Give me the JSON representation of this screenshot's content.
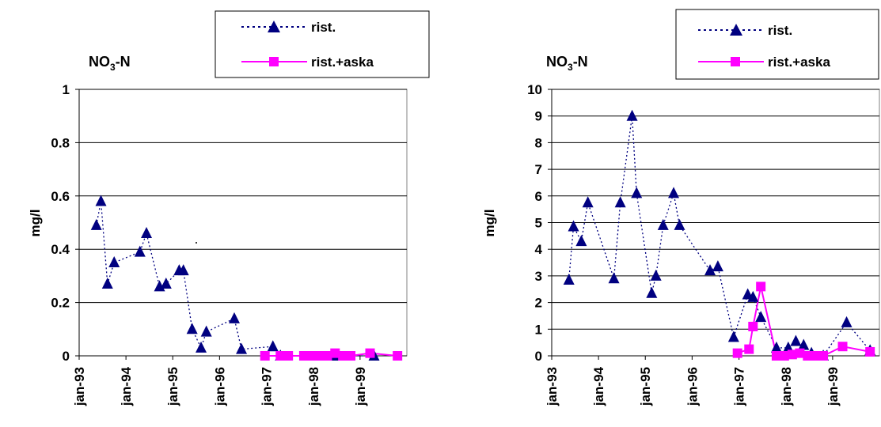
{
  "chart_data": [
    {
      "type": "line",
      "title_main": "NO",
      "title_sub": "3",
      "title_rest": "-N",
      "ylabel": "mg/l",
      "ylim": [
        0,
        1
      ],
      "yticks": [
        "0",
        "0.2",
        "0.4",
        "0.6",
        "0.8",
        "1"
      ],
      "yticks_values": [
        0,
        0.2,
        0.4,
        0.6,
        0.8,
        1
      ],
      "xlim": [
        "1993-01-01",
        "2000-01-01"
      ],
      "xticks": [
        "jan-93",
        "jan-94",
        "jan-95",
        "jan-96",
        "jan-97",
        "jan-98",
        "jan-99"
      ],
      "xticks_values": [
        "1993-01-01",
        "1994-01-01",
        "1995-01-01",
        "1996-01-01",
        "1997-01-01",
        "1998-01-01",
        "1999-01-01"
      ],
      "series": [
        {
          "name": "rist.",
          "color": "#000080",
          "marker": "triangle",
          "style": "dotted",
          "x": [
            "1993-05-15",
            "1993-06-20",
            "1993-08-10",
            "1993-10-01",
            "1994-04-20",
            "1994-06-10",
            "1994-09-20",
            "1994-11-10",
            "1995-02-20",
            "1995-03-25",
            "1995-06-01",
            "1995-08-10",
            "1995-09-20",
            "1996-04-25",
            "1996-06-20",
            "1997-02-20",
            "1997-04-20",
            "1998-06-20",
            "1999-04-20"
          ],
          "values": [
            0.49,
            0.58,
            0.27,
            0.35,
            0.39,
            0.46,
            0.26,
            0.27,
            0.32,
            0.32,
            0.1,
            0.03,
            0.09,
            0.14,
            0.025,
            0.035,
            0.0,
            0.0,
            0.0
          ]
        },
        {
          "name": "rist.+aska",
          "color": "#ff00ff",
          "marker": "square",
          "style": "solid",
          "x": [
            "1996-12-20",
            "1997-04-20",
            "1997-06-20",
            "1997-10-20",
            "1997-12-20",
            "1998-02-20",
            "1998-04-20",
            "1998-06-20",
            "1998-08-20",
            "1998-10-20",
            "1999-03-20",
            "1999-10-20"
          ],
          "values": [
            0,
            0,
            0,
            0,
            0,
            0,
            0,
            0.01,
            0,
            0,
            0.01,
            0
          ]
        }
      ]
    },
    {
      "type": "line",
      "title_main": "NO",
      "title_sub": "3",
      "title_rest": "-N",
      "ylabel": "mg/l",
      "ylim": [
        0,
        10
      ],
      "yticks": [
        "0",
        "1",
        "2",
        "3",
        "4",
        "5",
        "6",
        "7",
        "8",
        "9",
        "10"
      ],
      "yticks_values": [
        0,
        1,
        2,
        3,
        4,
        5,
        6,
        7,
        8,
        9,
        10
      ],
      "xlim": [
        "1993-01-01",
        "2000-01-01"
      ],
      "xticks": [
        "jan-93",
        "jan-94",
        "jan-95",
        "jan-96",
        "jan-97",
        "jan-98",
        "jan-99"
      ],
      "xticks_values": [
        "1993-01-01",
        "1994-01-01",
        "1995-01-01",
        "1996-01-01",
        "1997-01-01",
        "1998-01-01",
        "1999-01-01"
      ],
      "series": [
        {
          "name": "rist.",
          "color": "#000080",
          "marker": "triangle",
          "style": "dotted",
          "x": [
            "1993-05-15",
            "1993-06-20",
            "1993-08-20",
            "1993-10-10",
            "1994-05-01",
            "1994-06-20",
            "1994-09-20",
            "1994-10-25",
            "1995-02-20",
            "1995-03-25",
            "1995-05-20",
            "1995-08-10",
            "1995-09-25",
            "1996-05-20",
            "1996-07-20",
            "1996-11-20",
            "1997-03-10",
            "1997-04-20",
            "1997-06-20",
            "1997-10-20",
            "1998-01-20",
            "1998-03-20",
            "1998-05-20",
            "1998-07-20",
            "1998-10-20",
            "1999-04-20",
            "1999-10-20"
          ],
          "values": [
            2.85,
            4.85,
            4.3,
            5.75,
            2.9,
            5.75,
            9.0,
            6.1,
            2.35,
            3.0,
            4.9,
            6.1,
            4.9,
            3.2,
            3.35,
            0.7,
            2.3,
            2.2,
            1.45,
            0.3,
            0.3,
            0.55,
            0.4,
            0.1,
            0.0,
            1.25,
            0.2
          ]
        },
        {
          "name": "rist.+aska",
          "color": "#ff00ff",
          "marker": "square",
          "style": "solid",
          "x": [
            "1996-12-20",
            "1997-03-20",
            "1997-04-20",
            "1997-06-20",
            "1997-10-20",
            "1997-12-20",
            "1998-02-20",
            "1998-04-20",
            "1998-06-20",
            "1998-08-20",
            "1998-10-20",
            "1999-03-20",
            "1999-10-20"
          ],
          "values": [
            0.1,
            0.25,
            1.1,
            2.6,
            0.0,
            0.0,
            0.05,
            0.1,
            0.0,
            0.0,
            0.0,
            0.35,
            0.15
          ]
        }
      ]
    }
  ]
}
